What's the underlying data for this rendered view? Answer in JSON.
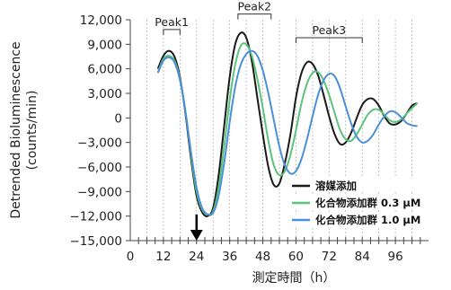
{
  "chart_data": {
    "type": "line",
    "xlabel": "測定時間（h）",
    "ylabel_line1": "Detrended Bioluminescence",
    "ylabel_line2": "(counts/min)",
    "xlim": [
      0,
      108
    ],
    "ylim": [
      -15000,
      12000
    ],
    "x_ticks": [
      0,
      12,
      24,
      36,
      48,
      60,
      72,
      84,
      96
    ],
    "y_ticks": [
      12000,
      9000,
      6000,
      3000,
      0,
      -3000,
      -6000,
      -9000,
      -12000,
      -15000
    ],
    "x_tick_labels": [
      "0",
      "12",
      "24",
      "36",
      "48",
      "60",
      "72",
      "84",
      "96"
    ],
    "y_tick_labels": [
      "12,000",
      "9,000",
      "6,000",
      "3,000",
      "0",
      "−3,000",
      "−6,000",
      "−9,000",
      "−12,000",
      "−15,000"
    ],
    "gridlines": "vertical dashed, every 6 h",
    "annotations": [
      {
        "text": "Peak1",
        "x_range": [
          12,
          18
        ],
        "y": 10800
      },
      {
        "text": "Peak2",
        "x_range": [
          39,
          51
        ],
        "y": 12700
      },
      {
        "text": "Peak3",
        "x_range": [
          60,
          84
        ],
        "y": 9800
      }
    ],
    "arrow": {
      "x": 24,
      "y_from": -11800,
      "y_to": -15000
    },
    "legend_position": "bottom-right",
    "series": [
      {
        "name": "溶媒添加",
        "color": "#1a1a1a",
        "x": [
          10,
          12,
          14,
          16,
          18,
          20,
          22,
          24,
          26,
          28,
          30,
          32,
          34,
          36,
          38,
          40,
          42,
          44,
          46,
          48,
          50,
          52,
          54,
          56,
          58,
          60,
          62,
          64,
          66,
          68,
          70,
          72,
          74,
          76,
          78,
          80,
          82,
          84,
          86,
          88,
          90,
          92,
          94,
          96,
          98,
          100,
          102,
          104
        ],
        "y": [
          6000,
          7600,
          8200,
          7500,
          5000,
          500,
          -5000,
          -9500,
          -11500,
          -12000,
          -11000,
          -7000,
          -1000,
          5000,
          9000,
          10400,
          9800,
          7000,
          2500,
          -2000,
          -6000,
          -8200,
          -8000,
          -5500,
          -2000,
          2500,
          5500,
          6800,
          6600,
          5200,
          2800,
          200,
          -2000,
          -3200,
          -3000,
          -1800,
          0,
          1600,
          2300,
          2300,
          1500,
          200,
          -700,
          -800,
          -400,
          500,
          1500,
          1800
        ]
      },
      {
        "name": "化合物添加群",
        "concentration": "0.3 μM",
        "color": "#5cc47a",
        "x": [
          10,
          12,
          14,
          16,
          18,
          20,
          22,
          24,
          26,
          28,
          30,
          32,
          34,
          36,
          38,
          40,
          42,
          44,
          46,
          48,
          50,
          52,
          54,
          56,
          58,
          60,
          62,
          64,
          66,
          68,
          70,
          72,
          74,
          76,
          78,
          80,
          82,
          84,
          86,
          88,
          90,
          92,
          94,
          96,
          98,
          100,
          102,
          104
        ],
        "y": [
          5600,
          7200,
          7600,
          7000,
          4800,
          800,
          -4500,
          -9000,
          -11200,
          -11800,
          -11400,
          -8500,
          -3500,
          2200,
          6500,
          8800,
          9000,
          7600,
          4800,
          1200,
          -2800,
          -5800,
          -7000,
          -6500,
          -4500,
          -1500,
          1800,
          4200,
          5500,
          5600,
          4600,
          2800,
          600,
          -1500,
          -2600,
          -2800,
          -2000,
          -800,
          400,
          1000,
          1000,
          400,
          -300,
          -500,
          -200,
          500,
          1200,
          1800
        ]
      },
      {
        "name": "化合物添加群",
        "concentration": "1.0 μM",
        "color": "#4a90d9",
        "x": [
          10,
          12,
          14,
          16,
          18,
          20,
          22,
          24,
          26,
          28,
          30,
          32,
          34,
          36,
          38,
          40,
          42,
          44,
          46,
          48,
          50,
          52,
          54,
          56,
          58,
          60,
          62,
          64,
          66,
          68,
          70,
          72,
          74,
          76,
          78,
          80,
          82,
          84,
          86,
          88,
          90,
          92,
          94,
          96,
          98,
          100,
          102,
          104
        ],
        "y": [
          5500,
          7000,
          7400,
          6800,
          4600,
          700,
          -4200,
          -8500,
          -11000,
          -11800,
          -11600,
          -9500,
          -5500,
          -500,
          3800,
          6500,
          7800,
          8200,
          7600,
          5800,
          3000,
          -300,
          -3500,
          -5800,
          -6800,
          -6500,
          -5000,
          -2600,
          200,
          2800,
          4600,
          5400,
          5100,
          3600,
          1400,
          -700,
          -2300,
          -3000,
          -2800,
          -2000,
          -800,
          200,
          800,
          700,
          100,
          -600,
          -900,
          -1000
        ]
      }
    ]
  }
}
